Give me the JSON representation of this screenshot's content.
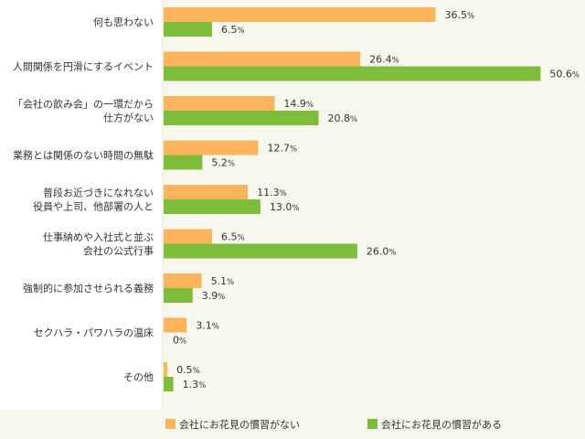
{
  "chart_data": {
    "type": "bar",
    "orientation": "horizontal",
    "categories": [
      [
        "何も思わない"
      ],
      [
        "人間関係を円滑にするイベント"
      ],
      [
        "「会社の飲み会」の一環だから",
        "仕方がない"
      ],
      [
        "業務とは関係のない時間の無駄"
      ],
      [
        "普段お近づきになれない",
        "役員や上司、他部署の人と"
      ],
      [
        "仕事納めや入社式と並ぶ",
        "会社の公式行事"
      ],
      [
        "強制的に参加させられる義務"
      ],
      [
        "セクハラ・パワハラの温床"
      ],
      [
        "その他"
      ]
    ],
    "series": [
      {
        "name": "会社にお花見の慣習がない",
        "color": "#fbb45c",
        "values": [
          36.5,
          26.4,
          14.9,
          12.7,
          11.3,
          6.5,
          5.1,
          3.1,
          0.5
        ],
        "labels": [
          "36.5",
          "26.4",
          "14.9",
          "12.7",
          "11.3",
          "6.5",
          "5.1",
          "3.1",
          "0.5"
        ]
      },
      {
        "name": "会社にお花見の慣習がある",
        "color": "#7dbd3b",
        "values": [
          6.5,
          50.6,
          20.8,
          5.2,
          13.0,
          26.0,
          3.9,
          0,
          1.3
        ],
        "labels": [
          "6.5",
          "50.6",
          "20.8",
          "5.2",
          "13.0",
          "26.0",
          "3.9",
          "0",
          "1.3"
        ]
      }
    ],
    "value_suffix": "%",
    "xlim": [
      0,
      56
    ],
    "legend_position": "bottom",
    "grid": false
  }
}
